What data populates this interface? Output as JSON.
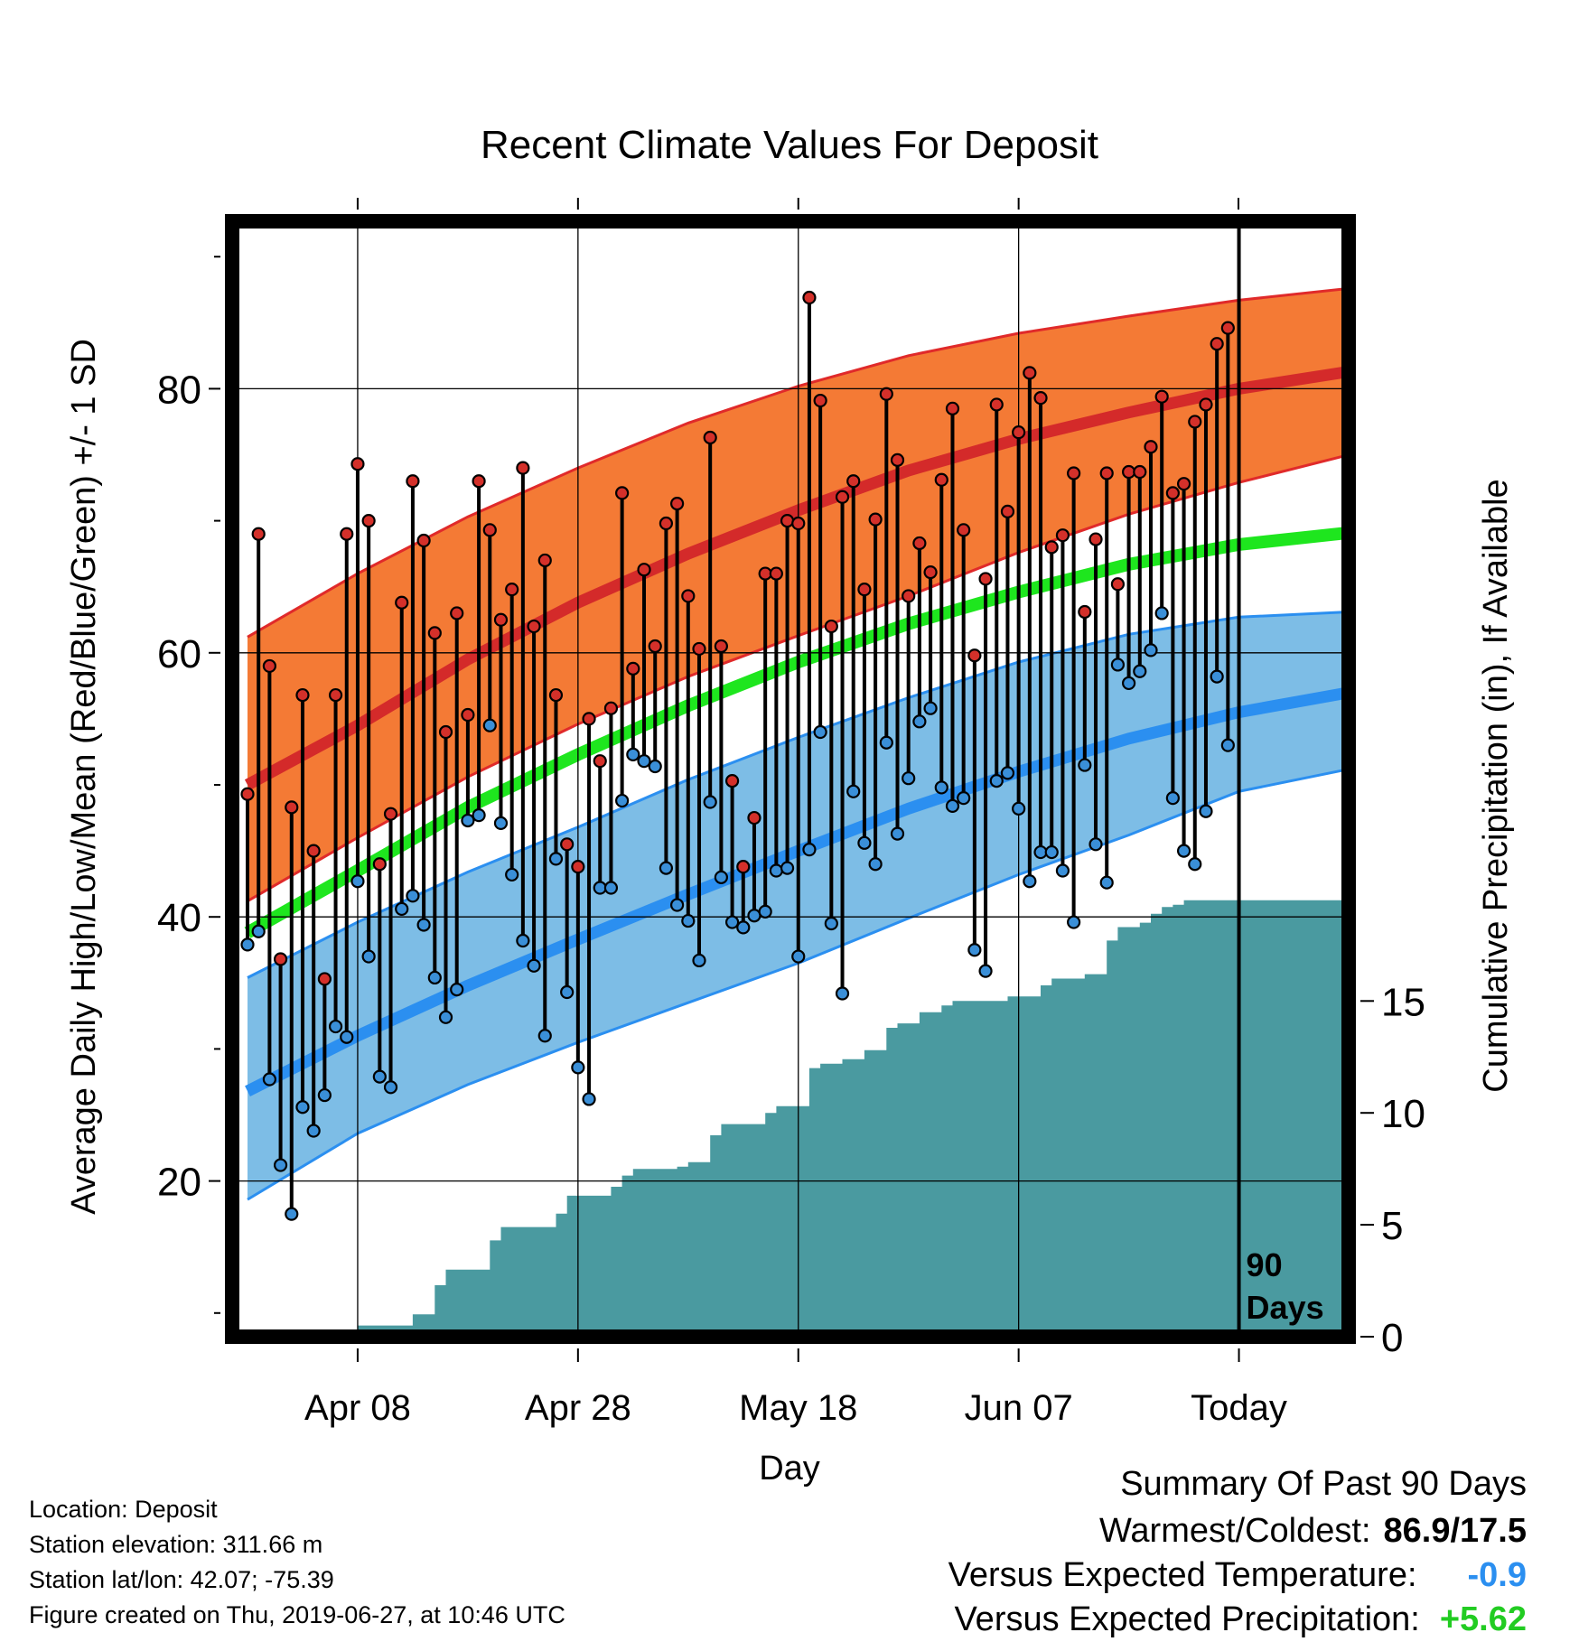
{
  "title": "Recent Climate Values For Deposit",
  "xlabel": "Day",
  "ylabel_left": "Average Daily High/Low/Mean (Red/Blue/Green) +/- 1 SD",
  "ylabel_right": "Cumulative Precipitation (in), If Available",
  "days_label": [
    "90",
    "Days"
  ],
  "colors": {
    "high_band": "#f47a35",
    "high_line": "#d42a2a",
    "high_edge": "#e02a2a",
    "low_band": "#7dbde6",
    "low_line": "#2b8ff0",
    "low_edge": "#2b8ff0",
    "mean_line": "#1ee61e",
    "precip": "#4a9aa0",
    "high_dot": "#d4302a",
    "low_dot": "#3a8fd8"
  },
  "chart_data": {
    "type": "line",
    "x_unit": "day",
    "x_ticks": [
      {
        "date": "2019-04-08",
        "label": "Apr 08"
      },
      {
        "date": "2019-04-28",
        "label": "Apr 28"
      },
      {
        "date": "2019-05-18",
        "label": "May 18"
      },
      {
        "date": "2019-06-07",
        "label": "Jun 07"
      },
      {
        "date": "2019-06-27",
        "label": "Today"
      }
    ],
    "x_range": [
      "2019-03-29",
      "2019-07-07"
    ],
    "today": "2019-06-27",
    "left_axis": {
      "ylim": [
        8,
        93
      ],
      "ticks": [
        20,
        40,
        60,
        80
      ],
      "minor_ticks": [
        10,
        30,
        50,
        70,
        90
      ]
    },
    "right_axis": {
      "ylim": [
        0,
        45
      ],
      "ticks": [
        0,
        5,
        10,
        15
      ]
    },
    "series": [
      {
        "name": "Normal High",
        "x": [
          "2019-03-29",
          "2019-04-08",
          "2019-04-18",
          "2019-04-28",
          "2019-05-08",
          "2019-05-18",
          "2019-05-28",
          "2019-06-07",
          "2019-06-17",
          "2019-06-27",
          "2019-07-07"
        ],
        "y": [
          50,
          54.5,
          59.5,
          63.8,
          67.5,
          70.8,
          73.8,
          76.2,
          78.2,
          80,
          81.3
        ],
        "sd_upper": [
          61.2,
          66,
          70.3,
          74,
          77.4,
          80.2,
          82.5,
          84.2,
          85.5,
          86.7,
          87.6
        ],
        "sd_lower": [
          41.2,
          46,
          50.6,
          54.6,
          58.2,
          61.3,
          64.3,
          67.6,
          70.5,
          72.9,
          75
        ]
      },
      {
        "name": "Normal Mean",
        "x": [
          "2019-03-29",
          "2019-04-08",
          "2019-04-18",
          "2019-04-28",
          "2019-05-08",
          "2019-05-18",
          "2019-05-28",
          "2019-06-07",
          "2019-06-17",
          "2019-06-27",
          "2019-07-07"
        ],
        "y": [
          38.8,
          43.5,
          48.3,
          52.3,
          56,
          59.3,
          62.2,
          64.6,
          66.7,
          68.2,
          69.1
        ]
      },
      {
        "name": "Normal Low",
        "x": [
          "2019-03-29",
          "2019-04-08",
          "2019-04-18",
          "2019-04-28",
          "2019-05-08",
          "2019-05-18",
          "2019-05-28",
          "2019-06-07",
          "2019-06-17",
          "2019-06-27",
          "2019-07-07"
        ],
        "y": [
          26.8,
          31,
          34.8,
          38.3,
          41.7,
          45,
          48.2,
          51,
          53.5,
          55.5,
          57
        ],
        "sd_upper": [
          35.4,
          39.6,
          43.4,
          46.8,
          50.4,
          53.6,
          56.6,
          59.3,
          61.4,
          62.7,
          63.1
        ],
        "sd_lower": [
          18.6,
          23.6,
          27.3,
          30.5,
          33.5,
          36.5,
          39.9,
          43.2,
          46.2,
          49.5,
          51.2
        ]
      },
      {
        "name": "Cumulative Precipitation",
        "axis": "right",
        "x": [
          "2019-04-03",
          "2019-04-04",
          "2019-04-07",
          "2019-04-08",
          "2019-04-11",
          "2019-04-13",
          "2019-04-15",
          "2019-04-16",
          "2019-04-19",
          "2019-04-20",
          "2019-04-21",
          "2019-04-25",
          "2019-04-26",
          "2019-04-27",
          "2019-05-01",
          "2019-05-02",
          "2019-05-03",
          "2019-05-07",
          "2019-05-08",
          "2019-05-10",
          "2019-05-11",
          "2019-05-15",
          "2019-05-16",
          "2019-05-19",
          "2019-05-20",
          "2019-05-22",
          "2019-05-24",
          "2019-05-26",
          "2019-05-27",
          "2019-05-29",
          "2019-05-31",
          "2019-06-01",
          "2019-06-06",
          "2019-06-09",
          "2019-06-10",
          "2019-06-13",
          "2019-06-15",
          "2019-06-16",
          "2019-06-18",
          "2019-06-19",
          "2019-06-20",
          "2019-06-21",
          "2019-06-22",
          "2019-06-27",
          "2019-07-07"
        ],
        "y": [
          0,
          0.3,
          0.3,
          0.5,
          0.5,
          1.0,
          2.3,
          3.0,
          3.0,
          4.3,
          4.9,
          4.9,
          5.5,
          6.3,
          6.7,
          7.2,
          7.5,
          7.6,
          7.8,
          9.0,
          9.5,
          10.0,
          10.3,
          12.0,
          12.2,
          12.4,
          12.8,
          13.8,
          14.0,
          14.5,
          14.8,
          15.0,
          15.2,
          15.7,
          16.0,
          16.2,
          17.7,
          18.3,
          18.5,
          18.9,
          19.2,
          19.3,
          19.5,
          19.5,
          19.5
        ]
      }
    ],
    "daily": {
      "x_start": "2019-03-29",
      "high": [
        49.3,
        69,
        59,
        36.8,
        48.3,
        56.8,
        45,
        35.3,
        56.8,
        69,
        74.3,
        70,
        44,
        47.8,
        63.8,
        73,
        68.5,
        61.5,
        54,
        63,
        55.3,
        73,
        69.3,
        62.5,
        64.8,
        74,
        62,
        67,
        56.8,
        45.5,
        43.8,
        55,
        51.8,
        55.8,
        72.1,
        58.8,
        66.3,
        60.5,
        69.8,
        71.3,
        64.3,
        60.3,
        76.3,
        60.5,
        50.3,
        43.8,
        47.5,
        66,
        66,
        70,
        69.8,
        86.9,
        79.1,
        62,
        71.8,
        73,
        64.8,
        70.1,
        79.6,
        74.6,
        64.3,
        68.3,
        66.1,
        73.1,
        78.5,
        69.3,
        59.8,
        65.6,
        78.8,
        70.7,
        76.7,
        81.2,
        79.3,
        68,
        68.9,
        73.6,
        63.1,
        68.6,
        73.6,
        65.2,
        73.7,
        73.7,
        75.6,
        79.4,
        72.1,
        72.8,
        77.5,
        78.8,
        83.4,
        84.6
      ],
      "low": [
        37.9,
        38.9,
        27.7,
        21.2,
        17.5,
        25.6,
        23.8,
        26.5,
        31.7,
        30.9,
        42.7,
        37,
        27.9,
        27.1,
        40.6,
        41.6,
        39.4,
        35.4,
        32.4,
        34.5,
        47.3,
        47.7,
        54.5,
        47.1,
        43.2,
        38.2,
        36.3,
        31,
        44.4,
        34.3,
        28.6,
        26.2,
        42.2,
        42.2,
        48.8,
        52.3,
        51.8,
        51.4,
        43.7,
        40.9,
        39.7,
        36.7,
        48.7,
        43,
        39.6,
        39.2,
        40.1,
        40.4,
        43.5,
        43.7,
        37,
        45.1,
        54,
        39.5,
        34.2,
        49.5,
        45.6,
        44,
        53.2,
        46.3,
        50.5,
        54.8,
        55.8,
        49.8,
        48.4,
        49,
        37.5,
        35.9,
        50.3,
        50.9,
        48.2,
        42.7,
        44.9,
        44.9,
        43.5,
        39.6,
        51.5,
        45.5,
        42.6,
        59.1,
        57.7,
        58.6,
        60.2,
        63,
        49,
        45,
        44,
        48,
        58.2,
        53
      ]
    }
  },
  "station": {
    "location": "Location: Deposit",
    "elevation": "Station elevation: 311.66 m",
    "latlon": "Station lat/lon: 42.07; -75.39",
    "created": "Figure created on Thu, 2019-06-27, at 10:46 UTC"
  },
  "summary": {
    "heading": "Summary Of Past 90 Days",
    "warm_label": "Warmest/Coldest:",
    "warm_value": "86.9/17.5",
    "temp_label": "Versus Expected Temperature:",
    "temp_value": "-0.9",
    "temp_color": "#2b8ff0",
    "precip_label": "Versus Expected Precipitation:",
    "precip_value": "+5.62",
    "precip_color": "#22cc22"
  }
}
